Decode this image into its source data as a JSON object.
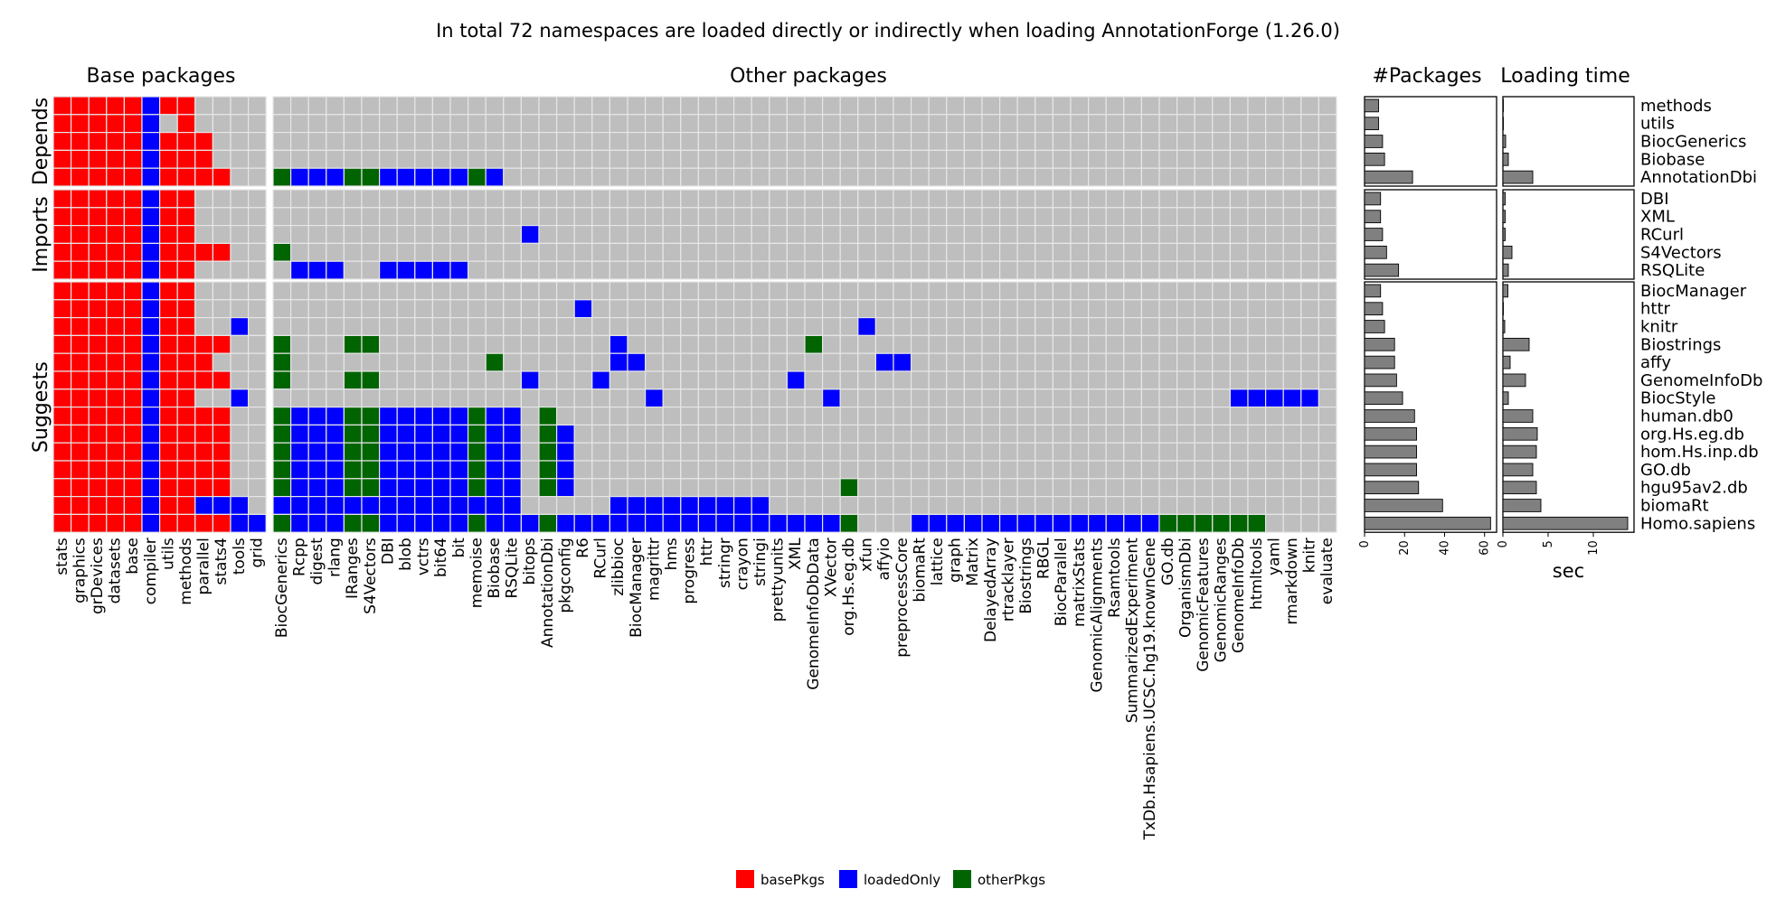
{
  "chart_data": {
    "type": "heatmap",
    "title": "In total 72 namespaces are loaded directly or indirectly when loading AnnotationForge (1.26.0)",
    "panels": {
      "base": "Base packages",
      "other": "Other packages",
      "npkg": "#Packages",
      "load": "Loading time"
    },
    "groups": [
      {
        "name": "Depends",
        "rows": [
          "methods",
          "utils",
          "BiocGenerics",
          "Biobase",
          "AnnotationDbi"
        ]
      },
      {
        "name": "Imports",
        "rows": [
          "DBI",
          "XML",
          "RCurl",
          "S4Vectors",
          "RSQLite"
        ]
      },
      {
        "name": "Suggests",
        "rows": [
          "BiocManager",
          "httr",
          "knitr",
          "Biostrings",
          "affy",
          "GenomeInfoDb",
          "BiocStyle",
          "human.db0",
          "org.Hs.eg.db",
          "hom.Hs.inp.db",
          "GO.db",
          "hgu95av2.db",
          "biomaRt",
          "Homo.sapiens"
        ]
      }
    ],
    "base_columns": [
      "stats",
      "graphics",
      "grDevices",
      "datasets",
      "base",
      "compiler",
      "utils",
      "methods",
      "parallel",
      "stats4",
      "tools",
      "grid"
    ],
    "other_columns": [
      "BiocGenerics",
      "Rcpp",
      "digest",
      "rlang",
      "IRanges",
      "S4Vectors",
      "DBI",
      "blob",
      "vctrs",
      "bit64",
      "bit",
      "memoise",
      "Biobase",
      "RSQLite",
      "bitops",
      "AnnotationDbi",
      "pkgconfig",
      "R6",
      "RCurl",
      "zlibbioc",
      "BiocManager",
      "magrittr",
      "hms",
      "progress",
      "httr",
      "stringr",
      "crayon",
      "stringi",
      "prettyunits",
      "XML",
      "GenomeInfoDbData",
      "XVector",
      "org.Hs.eg.db",
      "xfun",
      "affyio",
      "preprocessCore",
      "biomaRt",
      "lattice",
      "graph",
      "Matrix",
      "DelayedArray",
      "rtracklayer",
      "Biostrings",
      "RBGL",
      "BiocParallel",
      "matrixStats",
      "GenomicAlignments",
      "Rsamtools",
      "SummarizedExperiment",
      "TxDb.Hsapiens.UCSC.hg19.knownGene",
      "GO.db",
      "OrganismDbi",
      "GenomicFeatures",
      "GenomicRanges",
      "GenomeInfoDb",
      "htmltools",
      "yaml",
      "rmarkdown",
      "knitr",
      "evaluate"
    ],
    "base_matrix": [
      "BBBBBLBB0000",
      "BBBBBL0B0000",
      "BBBBBLBBB000",
      "BBBBBLBBB000",
      "BBBBBLBBBB00",
      "BBBBBLBB0000",
      "BBBBBLBB0000",
      "BBBBBLBB0000",
      "BBBBBLBBBB00",
      "BBBBBLBB0000",
      "BBBBBLBB0000",
      "BBBBBLBB0000",
      "BBBBBLBB00L0",
      "BBBBBLBBBB00",
      "BBBBBLBBB000",
      "BBBBBLBBBB00",
      "BBBBBLBB00L0",
      "BBBBBLBBBB00",
      "BBBBBLBBBB00",
      "BBBBBLBBBB00",
      "BBBBBLBBBB00",
      "BBBBBLBBBB00",
      "BBBBBLBBLLL0",
      "BBBBBLBBBBLL"
    ],
    "other_matrix": [
      "000000000000000000000000000000000000000000000000000000000000",
      "000000000000000000000000000000000000000000000000000000000000",
      "000000000000000000000000000000000000000000000000000000000000",
      "000000000000000000000000000000000000000000000000000000000000",
      "OLLLOOLLLLLOL00000000000000000000000000000000000000000000000",
      "000000000000000000000000000000000000000000000000000000000000",
      "000000000000000000000000000000000000000000000000000000000000",
      "00000000000000L000000000000000000000000000000000000000000000",
      "O00000000000000000000000000000000000000000000000000000000000",
      "0LLL00LLLLL0000000000000000000000000000000000000000000000000",
      "000000000000000000000000000000000000000000000000000000000000",
      "00000000000000000L000000000000000000000000000000000000000000",
      "000000000000000000000000000000000L00000000000000000000000000",
      "O000OO0000000000000L0000000000O00000000000000000000000000000",
      "O00000000000O000000LL0000000000000LL000000000000000000000000",
      "O000OO00000000L000L0000000000L000000000000000000000000000000",
      "000000000000000000000L000000000L0000000000000000000000LLLLL0",
      "OLLLOOLLLLLOLL0O000000000000000000000000000000000000000000000",
      "OLLLOOLLLLLOLL0OL00000000000000000000000000000000000000000000",
      "OLLLOOLLLLLOLL0OL00000000000000000000000000000000000000000000",
      "OLLLOOLLLLLOLL0OL00000000000000000000000000000000000000000000",
      "OLLLOOLLLLLOLL0OL000000000000000O000000000000000000000000000",
      "LLLLLLLLLLLLLL00000LLLLLLLLL000000000000000000000000000000000",
      "OLLLOOLLLLLOLLLOLLLLLLLLLLLLLLLLO000LLLLLLLLLLLLLLOOOOOO0000"
    ],
    "npkg_values": [
      7,
      7,
      9,
      10,
      24,
      8,
      8,
      9,
      11,
      17,
      8,
      9,
      10,
      15,
      15,
      16,
      19,
      25,
      26,
      26,
      26,
      27,
      39,
      63
    ],
    "load_values": [
      0.05,
      0.05,
      0.3,
      0.6,
      3.3,
      0.25,
      0.25,
      0.25,
      1.0,
      0.6,
      0.55,
      0.05,
      0.2,
      2.9,
      0.8,
      2.5,
      0.6,
      3.3,
      3.8,
      3.7,
      3.3,
      3.7,
      4.2,
      13.8
    ],
    "npkg_ticks": [
      0,
      20,
      40,
      60
    ],
    "npkg_xlim": [
      0,
      66
    ],
    "load_ticks": [
      0,
      5,
      10
    ],
    "load_xlim": [
      0,
      14.5
    ],
    "load_xlabel": "sec",
    "legend": [
      {
        "label": "basePkgs",
        "color": "#FF0000"
      },
      {
        "label": "loadedOnly",
        "color": "#0000FF"
      },
      {
        "label": "otherPkgs",
        "color": "#006400"
      }
    ],
    "colors": {
      "B": "#FF0000",
      "L": "#0000FF",
      "O": "#006400",
      "0": "#BEBEBE",
      "bar": "#808080"
    }
  }
}
